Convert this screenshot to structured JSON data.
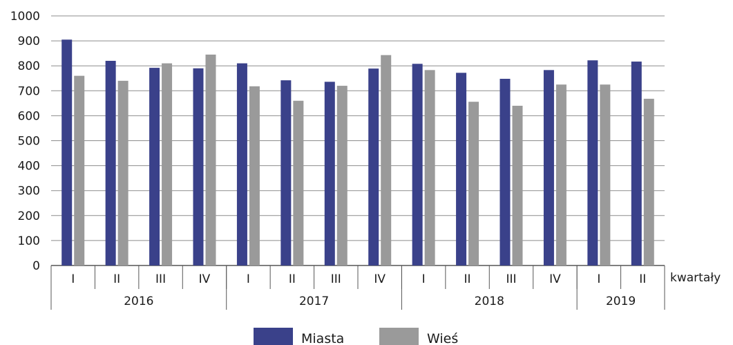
{
  "chart_data": {
    "type": "bar",
    "title": "",
    "xlabel": "kwartały",
    "ylabel": "",
    "ylim": [
      0,
      1000
    ],
    "yticks": [
      0,
      100,
      200,
      300,
      400,
      500,
      600,
      700,
      800,
      900,
      1000
    ],
    "grid": true,
    "legend_position": "bottom",
    "categories": [
      "I",
      "II",
      "III",
      "IV",
      "I",
      "II",
      "III",
      "IV",
      "I",
      "II",
      "III",
      "IV",
      "I",
      "II"
    ],
    "groups": [
      {
        "label": "2016",
        "span": 4
      },
      {
        "label": "2017",
        "span": 4
      },
      {
        "label": "2018",
        "span": 4
      },
      {
        "label": "2019",
        "span": 2
      }
    ],
    "series": [
      {
        "name": "Miasta",
        "color": "#3a418a",
        "values": [
          905,
          820,
          792,
          790,
          810,
          742,
          736,
          789,
          808,
          772,
          748,
          783,
          822,
          817
        ]
      },
      {
        "name": "Wieś",
        "color": "#9a9a9a",
        "values": [
          760,
          740,
          810,
          845,
          718,
          660,
          720,
          843,
          783,
          656,
          640,
          725,
          725,
          668
        ]
      }
    ]
  }
}
